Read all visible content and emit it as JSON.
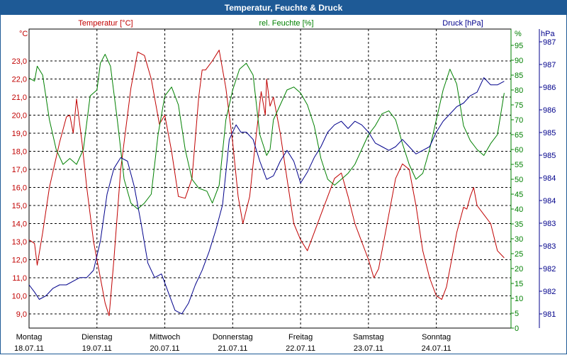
{
  "window": {
    "title": "Temperatur, Feuchte & Druck"
  },
  "colors": {
    "temp": "#c00000",
    "hum": "#008000",
    "press": "#00008b",
    "title_bg": "#1e5a96"
  },
  "chart_data": {
    "type": "line",
    "title": "Temperatur, Feuchte & Druck",
    "grid": true,
    "x_ticks": [
      {
        "day": "Montag",
        "date": "18.07.11"
      },
      {
        "day": "Dienstag",
        "date": "19.07.11"
      },
      {
        "day": "Mittwoch",
        "date": "20.07.11"
      },
      {
        "day": "Donnerstag",
        "date": "21.07.11"
      },
      {
        "day": "Freitag",
        "date": "22.07.11"
      },
      {
        "day": "Samstag",
        "date": "23.07.11"
      },
      {
        "day": "Sonntag",
        "date": "24.07.11"
      }
    ],
    "x_range": [
      0,
      7.1
    ],
    "axes": {
      "temp": {
        "label": "Temperatur [°C]",
        "unit": "°C",
        "range": [
          8.0,
          24.5
        ],
        "tick_labels": [
          "9,0",
          "10,0",
          "11,0",
          "12,0",
          "13,0",
          "14,0",
          "15,0",
          "16,0",
          "17,0",
          "18,0",
          "19,0",
          "20,0",
          "21,0",
          "22,0",
          "23,0"
        ]
      },
      "hum": {
        "label": "rel. Feuchte [%]",
        "unit": "%",
        "range": [
          0,
          100
        ],
        "tick_labels": [
          "0",
          "5",
          "10",
          "15",
          "20",
          "25",
          "30",
          "35",
          "40",
          "45",
          "50",
          "55",
          "60",
          "65",
          "70",
          "75",
          "80",
          "85",
          "90",
          "95"
        ]
      },
      "press": {
        "label": "Druck [hPa]",
        "unit": "hPa",
        "range": [
          980.6,
          987.6
        ],
        "tick_labels": [
          "981",
          "982",
          "982",
          "983",
          "983",
          "984",
          "984",
          "985",
          "985",
          "986",
          "986",
          "987",
          "987"
        ]
      }
    },
    "series": [
      {
        "name": "Temperatur [°C]",
        "axis": "temp",
        "x": [
          0,
          0.08,
          0.12,
          0.2,
          0.3,
          0.45,
          0.55,
          0.6,
          0.65,
          0.7,
          0.78,
          0.85,
          0.95,
          1.05,
          1.12,
          1.18,
          1.25,
          1.35,
          1.5,
          1.6,
          1.7,
          1.8,
          1.92,
          2.0,
          2.1,
          2.2,
          2.3,
          2.4,
          2.5,
          2.55,
          2.6,
          2.7,
          2.8,
          2.9,
          3.0,
          3.08,
          3.15,
          3.25,
          3.35,
          3.42,
          3.48,
          3.5,
          3.55,
          3.6,
          3.7,
          3.8,
          3.9,
          4.0,
          4.1,
          4.2,
          4.3,
          4.4,
          4.5,
          4.6,
          4.7,
          4.8,
          4.9,
          5.0,
          5.08,
          5.15,
          5.2,
          5.3,
          5.4,
          5.5,
          5.6,
          5.7,
          5.8,
          5.9,
          6.0,
          6.08,
          6.15,
          6.2,
          6.3,
          6.4,
          6.45,
          6.5,
          6.55,
          6.6,
          6.7,
          6.8,
          6.9,
          7.0
        ],
        "values": [
          13.1,
          12.9,
          11.7,
          13.5,
          16.0,
          18.5,
          19.9,
          20.0,
          19.0,
          20.9,
          18.5,
          16.0,
          13.0,
          11.0,
          9.6,
          8.9,
          12.0,
          17.0,
          21.5,
          23.5,
          23.3,
          22.0,
          19.5,
          20.0,
          18.0,
          15.5,
          15.4,
          16.5,
          21.0,
          22.5,
          22.5,
          23.0,
          23.6,
          21.5,
          18.5,
          15.5,
          14.0,
          15.5,
          19.0,
          21.3,
          20.0,
          22.0,
          20.5,
          21.0,
          19.0,
          16.5,
          14.0,
          13.1,
          12.5,
          13.5,
          14.5,
          15.5,
          16.5,
          16.8,
          15.5,
          14.0,
          13.0,
          12.0,
          11.0,
          11.5,
          12.5,
          14.5,
          16.5,
          17.3,
          17.0,
          15.0,
          12.5,
          11.0,
          10.0,
          9.8,
          10.5,
          11.5,
          13.5,
          14.9,
          14.8,
          15.5,
          16.0,
          15.0,
          14.5,
          14.0,
          12.5,
          12.1
        ]
      },
      {
        "name": "rel. Feuchte [%]",
        "axis": "hum",
        "x": [
          0,
          0.08,
          0.12,
          0.2,
          0.3,
          0.4,
          0.5,
          0.6,
          0.7,
          0.8,
          0.9,
          1.0,
          1.05,
          1.12,
          1.2,
          1.3,
          1.4,
          1.5,
          1.6,
          1.7,
          1.8,
          1.9,
          2.0,
          2.1,
          2.2,
          2.3,
          2.4,
          2.5,
          2.62,
          2.7,
          2.8,
          2.9,
          3.0,
          3.1,
          3.2,
          3.3,
          3.4,
          3.5,
          3.55,
          3.6,
          3.7,
          3.8,
          3.9,
          4.0,
          4.1,
          4.2,
          4.3,
          4.4,
          4.5,
          4.6,
          4.7,
          4.8,
          4.9,
          5.0,
          5.1,
          5.2,
          5.3,
          5.4,
          5.5,
          5.6,
          5.7,
          5.8,
          5.9,
          6.0,
          6.1,
          6.2,
          6.3,
          6.4,
          6.5,
          6.6,
          6.7,
          6.8,
          6.9,
          7.0
        ],
        "values": [
          84,
          83,
          88,
          85,
          70,
          60,
          55,
          57,
          55,
          60,
          78,
          80,
          89,
          92,
          88,
          70,
          50,
          42,
          40,
          42,
          45,
          65,
          78,
          81,
          75,
          60,
          50,
          47,
          46,
          42,
          48,
          70,
          80,
          87,
          89,
          85,
          65,
          58,
          60,
          70,
          75,
          80,
          81,
          79,
          75,
          68,
          57,
          50,
          48,
          50,
          52,
          55,
          60,
          65,
          68,
          72,
          73,
          70,
          62,
          55,
          50,
          52,
          60,
          70,
          80,
          87,
          82,
          68,
          63,
          60,
          58,
          62,
          65,
          79
        ]
      },
      {
        "name": "Druck [hPa]",
        "axis": "press",
        "x": [
          0,
          0.08,
          0.15,
          0.25,
          0.35,
          0.45,
          0.55,
          0.65,
          0.75,
          0.85,
          0.95,
          1.05,
          1.15,
          1.25,
          1.35,
          1.45,
          1.55,
          1.65,
          1.75,
          1.85,
          1.95,
          2.05,
          2.15,
          2.25,
          2.35,
          2.45,
          2.55,
          2.65,
          2.75,
          2.85,
          2.95,
          3.05,
          3.12,
          3.2,
          3.3,
          3.4,
          3.5,
          3.6,
          3.7,
          3.8,
          3.9,
          4.0,
          4.1,
          4.2,
          4.3,
          4.4,
          4.5,
          4.6,
          4.7,
          4.8,
          4.9,
          5.0,
          5.1,
          5.2,
          5.3,
          5.4,
          5.5,
          5.6,
          5.7,
          5.8,
          5.9,
          6.0,
          6.1,
          6.2,
          6.3,
          6.4,
          6.5,
          6.6,
          6.7,
          6.8,
          6.9,
          7.0
        ],
        "values": [
          981.8,
          981.6,
          981.4,
          981.5,
          981.7,
          981.8,
          981.8,
          981.9,
          982.0,
          982.0,
          982.2,
          983.0,
          984.3,
          985.0,
          985.3,
          985.2,
          984.5,
          983.5,
          982.4,
          982.0,
          982.1,
          981.6,
          981.1,
          981.0,
          981.3,
          981.8,
          982.2,
          982.7,
          983.3,
          984.0,
          985.8,
          986.2,
          986.0,
          986.0,
          985.8,
          985.2,
          984.7,
          984.8,
          985.2,
          985.5,
          985.2,
          984.6,
          984.9,
          985.3,
          985.6,
          986.0,
          986.2,
          986.3,
          986.1,
          986.3,
          986.2,
          986.0,
          985.7,
          985.6,
          985.5,
          985.6,
          985.8,
          985.6,
          985.4,
          985.5,
          985.6,
          986.0,
          986.3,
          986.5,
          986.7,
          986.8,
          987.0,
          987.1,
          987.5,
          987.3,
          987.3,
          987.4
        ]
      }
    ]
  }
}
